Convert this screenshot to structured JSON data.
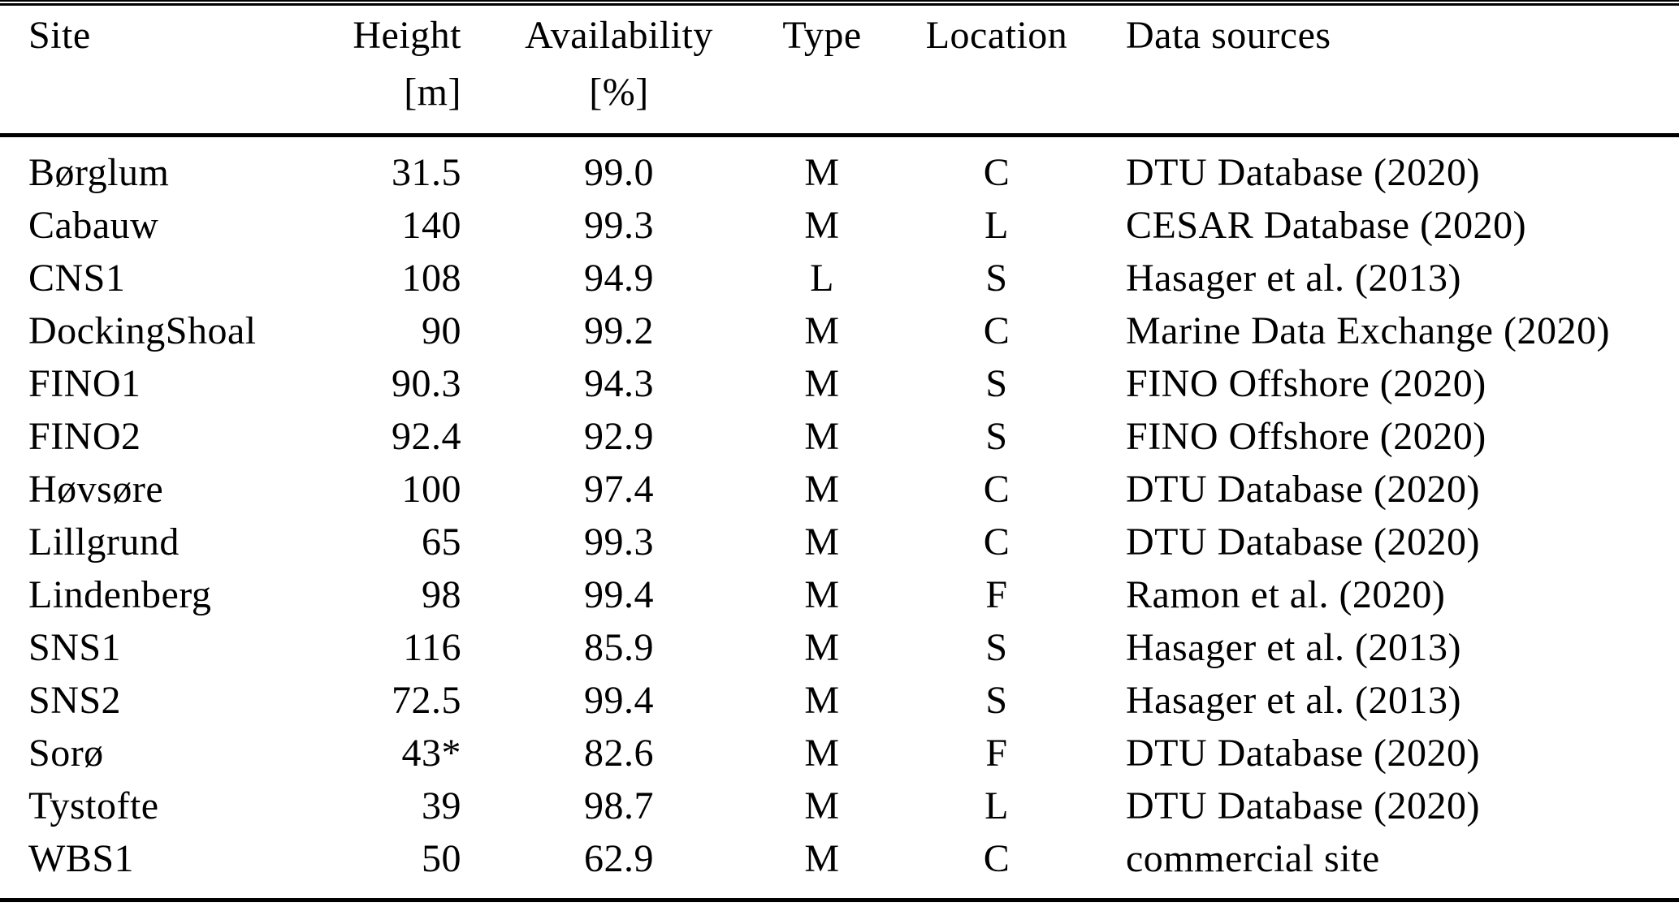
{
  "table": {
    "columns": [
      {
        "label": "Site",
        "unit": ""
      },
      {
        "label": "Height",
        "unit": "[m]"
      },
      {
        "label": "Availability",
        "unit": "[%]"
      },
      {
        "label": "Type",
        "unit": ""
      },
      {
        "label": "Location",
        "unit": ""
      },
      {
        "label": "Data sources",
        "unit": ""
      }
    ],
    "rows": [
      [
        "Børglum",
        "31.5",
        "99.0",
        "M",
        "C",
        "DTU Database (2020)"
      ],
      [
        "Cabauw",
        "140",
        "99.3",
        "M",
        "L",
        "CESAR Database (2020)"
      ],
      [
        "CNS1",
        "108",
        "94.9",
        "L",
        "S",
        "Hasager et al. (2013)"
      ],
      [
        "DockingShoal",
        "90",
        "99.2",
        "M",
        "C",
        "Marine Data Exchange (2020)"
      ],
      [
        "FINO1",
        "90.3",
        "94.3",
        "M",
        "S",
        "FINO Offshore (2020)"
      ],
      [
        "FINO2",
        "92.4",
        "92.9",
        "M",
        "S",
        "FINO Offshore (2020)"
      ],
      [
        "Høvsøre",
        "100",
        "97.4",
        "M",
        "C",
        "DTU Database (2020)"
      ],
      [
        "Lillgrund",
        "65",
        "99.3",
        "M",
        "C",
        "DTU Database (2020)"
      ],
      [
        "Lindenberg",
        "98",
        "99.4",
        "M",
        "F",
        "Ramon et al. (2020)"
      ],
      [
        "SNS1",
        "116",
        "85.9",
        "M",
        "S",
        "Hasager et al. (2013)"
      ],
      [
        "SNS2",
        "72.5",
        "99.4",
        "M",
        "S",
        "Hasager et al. (2013)"
      ],
      [
        "Sorø",
        "43*",
        "82.6",
        "M",
        "F",
        "DTU Database (2020)"
      ],
      [
        "Tystofte",
        "39",
        "98.7",
        "M",
        "L",
        "DTU Database (2020)"
      ],
      [
        "WBS1",
        "50",
        "62.9",
        "M",
        "C",
        "commercial site"
      ]
    ]
  },
  "colors": {
    "text": "#000000",
    "background": "#ffffff",
    "rule": "#000000"
  }
}
